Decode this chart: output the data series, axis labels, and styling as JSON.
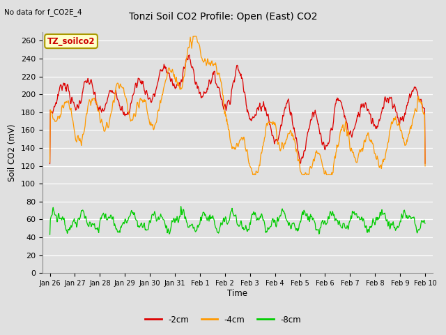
{
  "title": "Tonzi Soil CO2 Profile: Open (East) CO2",
  "subtitle": "No data for f_CO2E_4",
  "ylabel": "Soil CO2 (mV)",
  "xlabel": "Time",
  "ylim": [
    0,
    270
  ],
  "yticks": [
    0,
    20,
    40,
    60,
    80,
    100,
    120,
    140,
    160,
    180,
    200,
    220,
    240,
    260
  ],
  "legend_labels": [
    "-2cm",
    "-4cm",
    "-8cm"
  ],
  "line_colors": [
    "#dd0000",
    "#ff9900",
    "#00cc00"
  ],
  "background_color": "#e0e0e0",
  "annotation_box": "TZ_soilco2",
  "annotation_box_color": "#ffffcc",
  "annotation_box_edge": "#aa9900",
  "tick_labels": [
    "Jan 26",
    "Jan 27",
    "Jan 28",
    "Jan 29",
    "Jan 30",
    "Jan 31",
    "Feb 1",
    "Feb 2",
    "Feb 3",
    "Feb 4",
    "Feb 5",
    "Feb 6",
    "Feb 7",
    "Feb 8",
    "Feb 9",
    "Feb 10"
  ]
}
